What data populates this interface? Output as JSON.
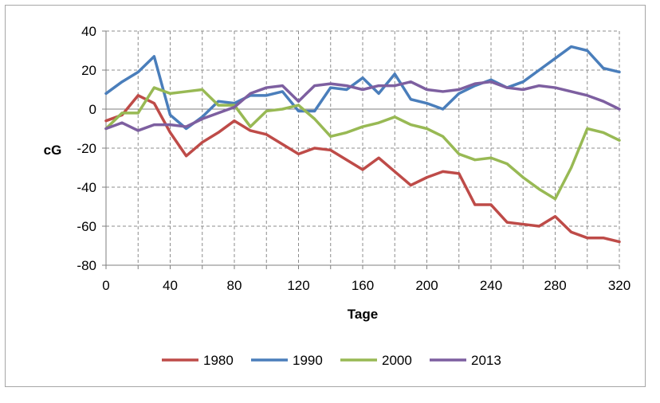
{
  "chart_data": {
    "type": "line",
    "title": "",
    "xlabel": "Tage",
    "ylabel": "cG",
    "xlim": [
      0,
      320
    ],
    "ylim": [
      -80,
      40
    ],
    "xticks": [
      0,
      40,
      80,
      120,
      160,
      200,
      240,
      280,
      320
    ],
    "yticks": [
      40,
      20,
      0,
      -20,
      -40,
      -60,
      -80
    ],
    "grid": "dashed",
    "legend": "bottom",
    "x": [
      0,
      10,
      20,
      30,
      40,
      50,
      60,
      70,
      80,
      90,
      100,
      110,
      120,
      130,
      140,
      150,
      160,
      170,
      180,
      190,
      200,
      210,
      220,
      230,
      240,
      250,
      260,
      270,
      280,
      290,
      300,
      310,
      320
    ],
    "series": [
      {
        "name": "1980",
        "color": "#be4b48",
        "values": [
          -6,
          -3,
          7,
          3,
          -12,
          -24,
          -17,
          -12,
          -6,
          -11,
          -13,
          -18,
          -23,
          -20,
          -21,
          -26,
          -31,
          -25,
          -32,
          -39,
          -35,
          -32,
          -33,
          -49,
          -49,
          -58,
          -59,
          -60,
          -55,
          -63,
          -66,
          -66,
          -68
        ]
      },
      {
        "name": "1990",
        "color": "#4a7ebb",
        "values": [
          8,
          14,
          19,
          27,
          -3,
          -10,
          -4,
          4,
          3,
          7,
          7,
          9,
          -1,
          -1,
          11,
          10,
          16,
          8,
          18,
          5,
          3,
          0,
          8,
          12,
          15,
          11,
          14,
          20,
          26,
          32,
          30,
          21,
          19
        ]
      },
      {
        "name": "2000",
        "color": "#98b954",
        "values": [
          -10,
          -2,
          -2,
          11,
          8,
          9,
          10,
          2,
          2,
          -9,
          -1,
          0,
          2,
          -5,
          -14,
          -12,
          -9,
          -7,
          -4,
          -8,
          -10,
          -14,
          -23,
          -26,
          -25,
          -28,
          -35,
          -41,
          -46,
          -30,
          -10,
          -12,
          -16
        ]
      },
      {
        "name": "2013",
        "color": "#7d5fa0",
        "values": [
          -10,
          -7,
          -11,
          -8,
          -8,
          -9,
          -5,
          -2,
          1,
          8,
          11,
          12,
          4,
          12,
          13,
          12,
          10,
          12,
          12,
          14,
          10,
          9,
          10,
          13,
          14,
          11,
          10,
          12,
          11,
          9,
          7,
          4,
          0
        ]
      }
    ]
  }
}
